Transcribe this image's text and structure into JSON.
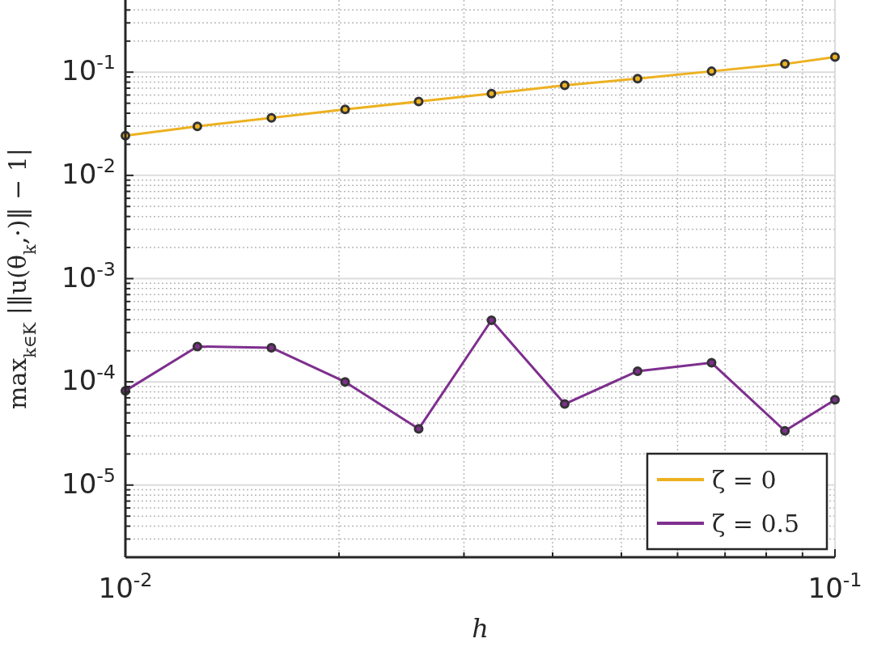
{
  "chart_data": {
    "type": "line",
    "xlabel": "h",
    "ylabel": "max$_{k∈K}$ |‖u(θ$_{k}$,·)‖ − 1|",
    "x": [
      0.01,
      0.01263,
      0.01606,
      0.0204,
      0.0259,
      0.0328,
      0.0416,
      0.0527,
      0.067,
      0.085,
      0.1
    ],
    "series": [
      {
        "name": "ζ = 0",
        "color": "#edb120",
        "values": [
          0.0243,
          0.0299,
          0.036,
          0.0435,
          0.0519,
          0.062,
          0.0747,
          0.0865,
          0.102,
          0.12,
          0.14
        ]
      },
      {
        "name": "ζ = 0.5",
        "color": "#7e2f8e",
        "values": [
          8.2e-05,
          0.00022,
          0.000214,
          0.0001,
          3.5e-05,
          0.000395,
          6.1e-05,
          0.000127,
          0.000153,
          3.35e-05,
          6.7e-05
        ]
      }
    ],
    "log": "xy",
    "xlim": [
      0.01,
      0.1
    ],
    "ylim": [
      2e-06,
      0.5
    ],
    "xticks": [
      {
        "value": 0.01,
        "label": "10$^{-2}$"
      },
      {
        "value": 0.1,
        "label": "10$^{-1}$"
      }
    ],
    "yticks": [
      {
        "value": 1e-05,
        "label": "10$^{-5}$"
      },
      {
        "value": 0.0001,
        "label": "10$^{-4}$"
      },
      {
        "value": 0.001,
        "label": "10$^{-3}$"
      },
      {
        "value": 0.01,
        "label": "10$^{-2}$"
      },
      {
        "value": 0.1,
        "label": "10$^{-1}$"
      }
    ],
    "grid": true,
    "legend": "bottom right",
    "marker": "circle",
    "line_style": "solid"
  }
}
